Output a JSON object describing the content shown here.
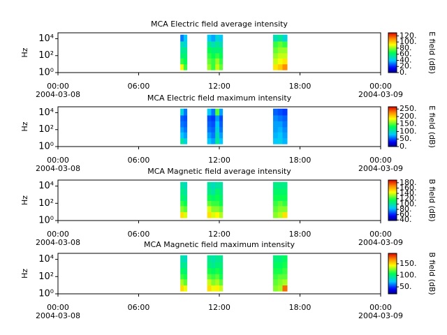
{
  "chart_data": [
    {
      "type": "spectrogram",
      "title": "MCA  Electric field average intensity",
      "ylabel": "Hz",
      "colorbar_label": "E field (dB)",
      "xlim": [
        0,
        24
      ],
      "xticks": [
        {
          "value": 0,
          "label": "00:00",
          "date": "2004-03-08"
        },
        {
          "value": 6,
          "label": "06:00"
        },
        {
          "value": 12,
          "label": "12:00"
        },
        {
          "value": 18,
          "label": "18:00"
        },
        {
          "value": 24,
          "label": "00:00",
          "date": "2004-03-09"
        }
      ],
      "ylim": [
        1,
        50000
      ],
      "log_y": true,
      "yticks": [
        {
          "value": 1,
          "label": "10⁰"
        },
        {
          "value": 100,
          "label": "10²"
        },
        {
          "value": 10000,
          "label": "10⁴"
        }
      ],
      "freq_edges": [
        2,
        10,
        50,
        200,
        1000,
        5000,
        30000
      ],
      "clim": [
        0,
        130
      ],
      "cticks": [
        {
          "value": 0,
          "label": "0."
        },
        {
          "value": 20,
          "label": "20."
        },
        {
          "value": 40,
          "label": "40."
        },
        {
          "value": 60,
          "label": "60."
        },
        {
          "value": 80,
          "label": "80."
        },
        {
          "value": 100,
          "label": "100."
        },
        {
          "value": 120,
          "label": "120."
        }
      ],
      "blocks": [
        {
          "t": [
            9.1,
            9.35,
            9.6
          ],
          "values": [
            [
              90,
              70,
              60,
              55,
              50,
              30
            ],
            [
              70,
              65,
              60,
              55,
              45,
              40
            ]
          ]
        },
        {
          "t": [
            11.1,
            11.4,
            11.7,
            12.0,
            12.25
          ],
          "values": [
            [
              80,
              75,
              70,
              65,
              55,
              40
            ],
            [
              70,
              70,
              65,
              60,
              50,
              35
            ],
            [
              85,
              80,
              70,
              60,
              55,
              45
            ],
            [
              75,
              70,
              65,
              60,
              50,
              40
            ]
          ]
        },
        {
          "t": [
            16.0,
            16.35,
            16.7,
            17.05
          ],
          "values": [
            [
              95,
              85,
              80,
              75,
              70,
              50
            ],
            [
              100,
              90,
              85,
              80,
              75,
              55
            ],
            [
              110,
              95,
              85,
              80,
              70,
              45
            ]
          ]
        }
      ]
    },
    {
      "type": "spectrogram",
      "title": "MCA  Electric field maximum intensity",
      "ylabel": "Hz",
      "colorbar_label": "E field (dB)",
      "xlim": [
        0,
        24
      ],
      "xticks": [
        {
          "value": 0,
          "label": "00:00",
          "date": "2004-03-08"
        },
        {
          "value": 6,
          "label": "06:00"
        },
        {
          "value": 12,
          "label": "12:00"
        },
        {
          "value": 18,
          "label": "18:00"
        },
        {
          "value": 24,
          "label": "00:00",
          "date": "2004-03-09"
        }
      ],
      "ylim": [
        1,
        50000
      ],
      "log_y": true,
      "yticks": [
        {
          "value": 1,
          "label": "10⁰"
        },
        {
          "value": 100,
          "label": "10²"
        },
        {
          "value": 10000,
          "label": "10⁴"
        }
      ],
      "freq_edges": [
        2,
        10,
        50,
        200,
        1000,
        5000,
        30000
      ],
      "clim": [
        0,
        265
      ],
      "cticks": [
        {
          "value": 0,
          "label": "0."
        },
        {
          "value": 50,
          "label": "50."
        },
        {
          "value": 100,
          "label": "100."
        },
        {
          "value": 150,
          "label": "150."
        },
        {
          "value": 200,
          "label": "200."
        },
        {
          "value": 250,
          "label": "250."
        }
      ],
      "blocks": [
        {
          "t": [
            9.1,
            9.35,
            9.6
          ],
          "values": [
            [
              110,
              80,
              70,
              60,
              55,
              90
            ],
            [
              90,
              70,
              60,
              55,
              50,
              60
            ]
          ]
        },
        {
          "t": [
            11.1,
            11.4,
            11.7,
            12.0,
            12.25
          ],
          "values": [
            [
              80,
              70,
              60,
              55,
              50,
              80
            ],
            [
              70,
              60,
              55,
              50,
              45,
              60
            ],
            [
              110,
              100,
              90,
              80,
              70,
              150
            ],
            [
              80,
              70,
              60,
              55,
              50,
              70
            ]
          ]
        },
        {
          "t": [
            16.0,
            16.35,
            16.7,
            17.05
          ],
          "values": [
            [
              80,
              75,
              70,
              70,
              65,
              55
            ],
            [
              85,
              80,
              75,
              70,
              60,
              50
            ],
            [
              75,
              70,
              65,
              60,
              55,
              45
            ]
          ]
        }
      ]
    },
    {
      "type": "spectrogram",
      "title": "MCA  Magnetic field average intensity",
      "ylabel": "Hz",
      "colorbar_label": "B field (dB)",
      "xlim": [
        0,
        24
      ],
      "xticks": [
        {
          "value": 0,
          "label": "00:00",
          "date": "2004-03-08"
        },
        {
          "value": 6,
          "label": "06:00"
        },
        {
          "value": 12,
          "label": "12:00"
        },
        {
          "value": 18,
          "label": "18:00"
        },
        {
          "value": 24,
          "label": "00:00",
          "date": "2004-03-09"
        }
      ],
      "ylim": [
        1,
        50000
      ],
      "log_y": true,
      "yticks": [
        {
          "value": 1,
          "label": "10⁰"
        },
        {
          "value": 100,
          "label": "10²"
        },
        {
          "value": 10000,
          "label": "10⁴"
        }
      ],
      "freq_edges": [
        2,
        10,
        50,
        200,
        1000,
        5000,
        30000
      ],
      "clim": [
        38,
        190
      ],
      "cticks": [
        {
          "value": 40,
          "label": "40."
        },
        {
          "value": 60,
          "label": "60."
        },
        {
          "value": 80,
          "label": "80."
        },
        {
          "value": 100,
          "label": "100."
        },
        {
          "value": 120,
          "label": "120."
        },
        {
          "value": 140,
          "label": "140."
        },
        {
          "value": 160,
          "label": "160."
        },
        {
          "value": 180,
          "label": "180."
        }
      ],
      "blocks": [
        {
          "t": [
            9.1,
            9.35,
            9.6
          ],
          "values": [
            [
              150,
              130,
              120,
              110,
              105,
              100
            ],
            [
              140,
              125,
              115,
              105,
              100,
              95
            ]
          ]
        },
        {
          "t": [
            11.1,
            11.4,
            11.7,
            12.0,
            12.25
          ],
          "values": [
            [
              150,
              140,
              125,
              115,
              105,
              100
            ],
            [
              140,
              130,
              120,
              110,
              100,
              95
            ],
            [
              145,
              130,
              120,
              115,
              110,
              100
            ],
            [
              135,
              125,
              115,
              110,
              105,
              100
            ]
          ]
        },
        {
          "t": [
            16.0,
            16.35,
            16.7,
            17.05
          ],
          "values": [
            [
              130,
              125,
              120,
              115,
              110,
              105
            ],
            [
              135,
              130,
              125,
              115,
              110,
              105
            ],
            [
              150,
              130,
              120,
              115,
              110,
              105
            ]
          ]
        }
      ]
    },
    {
      "type": "spectrogram",
      "title": "MCA  Magnetic field maximum intensity",
      "ylabel": "Hz",
      "colorbar_label": "B field (dB)",
      "xlim": [
        0,
        24
      ],
      "xticks": [
        {
          "value": 0,
          "label": "00:00",
          "date": "2004-03-08"
        },
        {
          "value": 6,
          "label": "06:00"
        },
        {
          "value": 12,
          "label": "12:00"
        },
        {
          "value": 18,
          "label": "18:00"
        },
        {
          "value": 24,
          "label": "00:00",
          "date": "2004-03-09"
        }
      ],
      "ylim": [
        1,
        50000
      ],
      "log_y": true,
      "yticks": [
        {
          "value": 1,
          "label": "10⁰"
        },
        {
          "value": 100,
          "label": "10²"
        },
        {
          "value": 10000,
          "label": "10⁴"
        }
      ],
      "freq_edges": [
        2,
        10,
        50,
        200,
        1000,
        5000,
        30000
      ],
      "clim": [
        20,
        195
      ],
      "cticks": [
        {
          "value": 50,
          "label": "50."
        },
        {
          "value": 100,
          "label": "100."
        },
        {
          "value": 150,
          "label": "150."
        }
      ],
      "blocks": [
        {
          "t": [
            9.1,
            9.35,
            9.6
          ],
          "values": [
            [
              150,
              130,
              115,
              105,
              95,
              90
            ],
            [
              140,
              120,
              110,
              100,
              95,
              85
            ]
          ]
        },
        {
          "t": [
            11.1,
            11.4,
            11.7,
            12.0,
            12.25
          ],
          "values": [
            [
              150,
              135,
              120,
              110,
              100,
              95
            ],
            [
              140,
              125,
              115,
              105,
              95,
              90
            ],
            [
              145,
              130,
              120,
              110,
              100,
              95
            ],
            [
              135,
              120,
              110,
              105,
              100,
              95
            ]
          ]
        },
        {
          "t": [
            16.0,
            16.35,
            16.7,
            17.05
          ],
          "values": [
            [
              125,
              120,
              115,
              110,
              105,
              100
            ],
            [
              130,
              125,
              120,
              110,
              105,
              100
            ],
            [
              175,
              130,
              120,
              115,
              110,
              105
            ]
          ]
        }
      ]
    }
  ]
}
